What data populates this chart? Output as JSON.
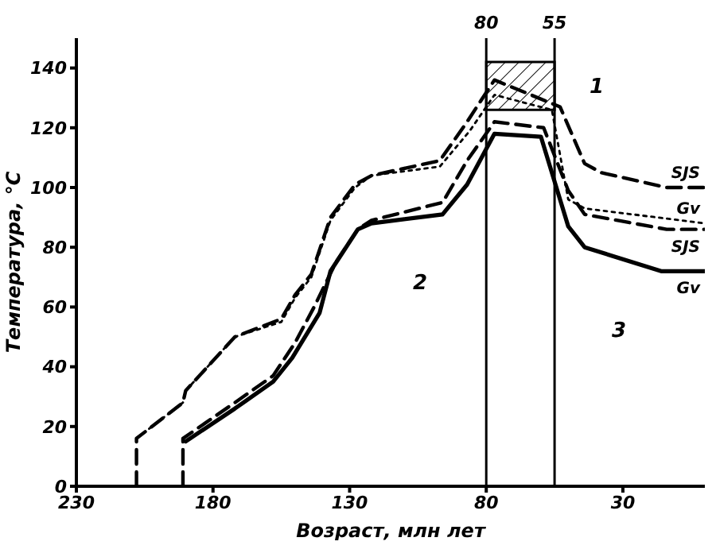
{
  "chart_data": {
    "type": "line",
    "xlabel": "Возраст, млн лет",
    "ylabel": "Температура, °C",
    "xlim": [
      230,
      0
    ],
    "xticks": [
      230,
      180,
      130,
      80,
      30
    ],
    "ylim": [
      0,
      150
    ],
    "yticks": [
      0,
      20,
      40,
      60,
      80,
      100,
      120,
      140
    ],
    "marker": "none",
    "series": [
      {
        "name": "SJS",
        "color": "#000000",
        "line_style": "dashed",
        "x": [
          208,
          208,
          191,
          190,
          172,
          155,
          150,
          144,
          137,
          128,
          122,
          97,
          87,
          77,
          53,
          44,
          38,
          14,
          0
        ],
        "values": [
          0,
          16,
          28,
          32,
          50,
          56,
          64,
          71,
          90,
          101,
          104,
          109,
          122,
          136,
          127,
          108,
          105,
          100,
          100
        ]
      },
      {
        "name": "Gv",
        "color": "#000000",
        "line_style": "dotted",
        "x": [
          208,
          191,
          190,
          172,
          155,
          150,
          144,
          137,
          128,
          122,
          97,
          86,
          77,
          56,
          50,
          44,
          0
        ],
        "values": [
          16,
          28,
          32,
          50,
          55,
          63,
          70,
          89,
          100,
          104,
          107,
          119,
          131,
          126,
          96,
          93,
          88
        ]
      },
      {
        "name": "SJS",
        "color": "#000000",
        "line_style": "dashed",
        "x": [
          191,
          191,
          172,
          158,
          150,
          143,
          135,
          127,
          122,
          96,
          87,
          77,
          59,
          50,
          44,
          14,
          0
        ],
        "values": [
          0,
          16,
          28,
          37,
          48,
          60,
          75,
          86,
          89,
          95,
          109,
          122,
          120,
          99,
          91,
          86,
          86
        ]
      },
      {
        "name": "Gv",
        "color": "#000000",
        "line_style": "solid",
        "x": [
          190,
          172,
          158,
          151,
          141,
          137,
          127,
          122,
          96,
          87,
          77,
          60,
          50,
          44,
          16,
          0
        ],
        "values": [
          15,
          26,
          35,
          43,
          58,
          72,
          86,
          88,
          91,
          101,
          118,
          117,
          87,
          80,
          72,
          72
        ]
      }
    ],
    "ref_lines": [
      {
        "axis": "x",
        "value": 80,
        "label": "80"
      },
      {
        "axis": "x",
        "value": 55,
        "label": "55"
      }
    ],
    "bands": [
      {
        "axis": "y",
        "from": 126,
        "to": 142,
        "label": "1"
      }
    ],
    "annotations": [
      "2",
      "3"
    ]
  }
}
